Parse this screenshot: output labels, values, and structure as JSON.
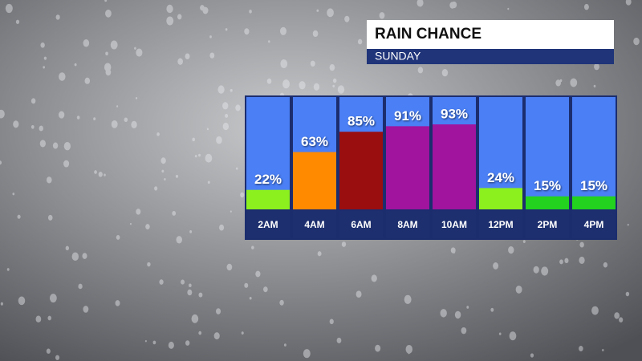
{
  "chart_data": {
    "type": "bar",
    "title": "RAIN CHANCE",
    "subtitle": "SUNDAY",
    "categories": [
      "2AM",
      "4AM",
      "6AM",
      "8AM",
      "10AM",
      "12PM",
      "2PM",
      "4PM"
    ],
    "values": [
      22,
      63,
      85,
      91,
      93,
      24,
      15,
      15
    ],
    "value_labels": [
      "22%",
      "63%",
      "85%",
      "91%",
      "93%",
      "24%",
      "15%",
      "15%"
    ],
    "colors": [
      "#8cf01e",
      "#ff8a00",
      "#9a0e10",
      "#a0149e",
      "#a0149e",
      "#8cf01e",
      "#22d21e",
      "#22d21e"
    ]
  }
}
